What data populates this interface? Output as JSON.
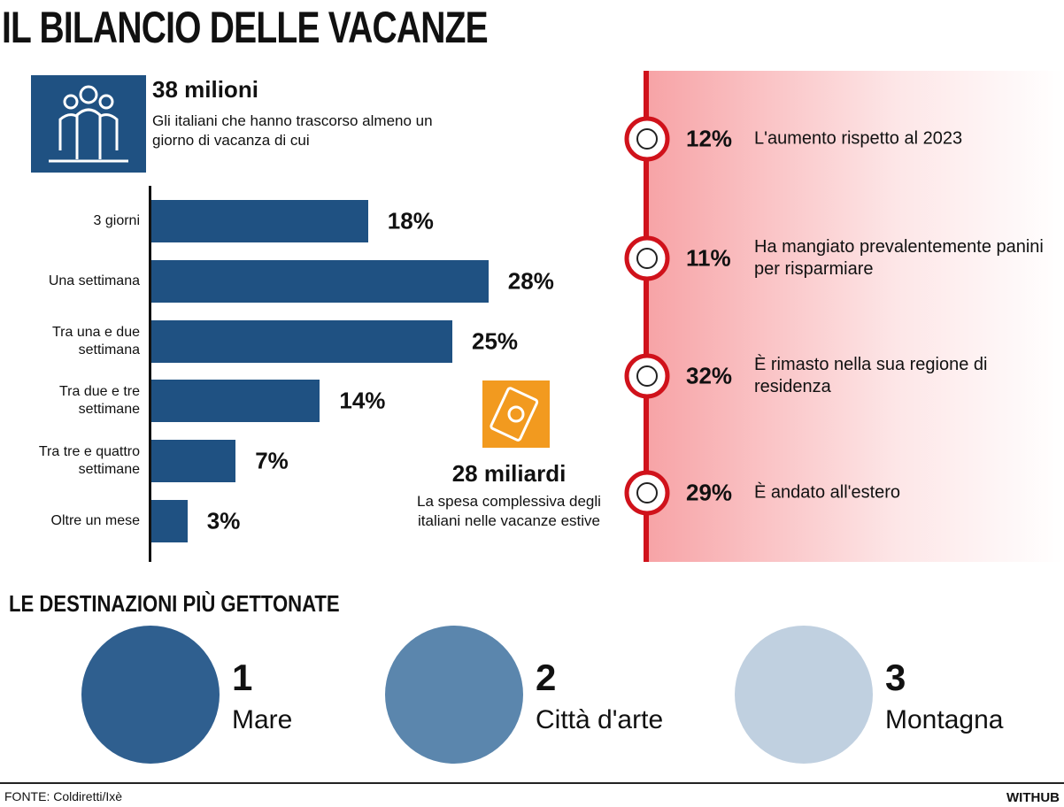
{
  "title": "IL BILANCIO DELLE VACANZE",
  "headline": {
    "figure": "38 milioni",
    "text": "Gli italiani che hanno trascorso almeno un giorno di vacanza di cui"
  },
  "chart_data": {
    "type": "bar",
    "orientation": "horizontal",
    "categories": [
      "3 giorni",
      "Una settimana",
      "Tra una e due settimana",
      "Tra due e tre settimane",
      "Tra tre e quattro settimane",
      "Oltre un mese"
    ],
    "values": [
      18,
      28,
      25,
      14,
      7,
      3
    ],
    "value_labels": [
      "18%",
      "28%",
      "25%",
      "14%",
      "7%",
      "3%"
    ],
    "color": "#1f5182"
  },
  "spending": {
    "figure": "28 miliardi",
    "text": "La spesa complessiva degli italiani nelle vacanze estive"
  },
  "facts": [
    {
      "figure": "12%",
      "text": "L'aumento rispetto al 2023"
    },
    {
      "figure": "11%",
      "text": "Ha mangiato prevalentemente panini per risparmiare"
    },
    {
      "figure": "32%",
      "text": "È rimasto nella sua regione di residenza"
    },
    {
      "figure": "29%",
      "text": "È andato all'estero"
    }
  ],
  "destinations": {
    "title": "LE DESTINAZIONI PIÙ GETTONATE",
    "items": [
      {
        "rank": 1,
        "name": "Mare"
      },
      {
        "rank": 2,
        "name": "Città d'arte"
      },
      {
        "rank": 3,
        "name": "Montagna"
      }
    ]
  },
  "source": "FONTE: Coldiretti/Ixè",
  "brand": "WITHUB"
}
